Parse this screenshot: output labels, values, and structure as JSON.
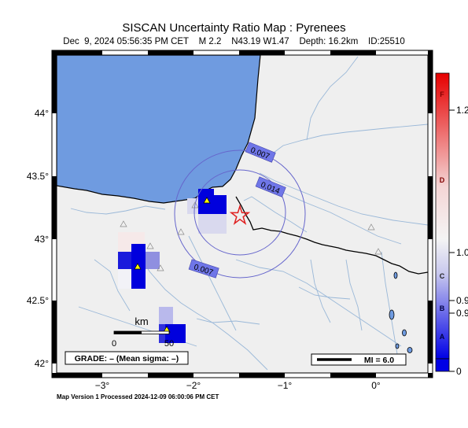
{
  "header": {
    "title": "SISCAN Uncertainty Ratio Map : Pyrenees",
    "subtitle": "Dec  9, 2024 05:56:35 PM CET    M 2.2    N43.19 W1.47    Depth: 16.2km    ID:25510"
  },
  "map": {
    "lat_ticks": [
      "44°",
      "43.5°",
      "43°",
      "42.5°",
      "42°"
    ],
    "lon_ticks": [
      "−3°",
      "−2°",
      "−1°",
      "0°"
    ],
    "contour_labels": [
      "0.007",
      "0.014",
      "0.007"
    ],
    "scale_bar": {
      "unit": "km",
      "start": "0",
      "end": "50"
    },
    "grade_box": "GRADE: – (Mean sigma: –)",
    "mi_legend": "MI = 6.0",
    "colors": {
      "sea": "#6f9be0",
      "land": "#efefef",
      "rivers": "#9ab8d8",
      "border": "#000000",
      "contour": "#6666cc",
      "epicenter": "#e02020",
      "station": "#ffff00"
    }
  },
  "colorbar": {
    "letters": [
      "F",
      "D",
      "C",
      "B",
      "A"
    ],
    "values": [
      "1.2",
      "1.0",
      "0.9",
      "0.9",
      "0"
    ]
  },
  "footer": "Map Version 1 Processed 2024-12-09 06:00:06 PM CET"
}
